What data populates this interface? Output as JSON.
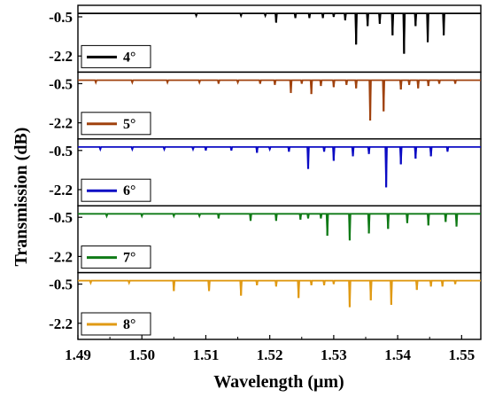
{
  "chart_data": {
    "type": "line",
    "xlabel": "Wavelength (μm)",
    "ylabel": "Transmission (dB)",
    "xlim": [
      1.49,
      1.553
    ],
    "x_ticks": [
      "1.49",
      "1.50",
      "1.51",
      "1.52",
      "1.53",
      "1.54",
      "1.55"
    ],
    "x_tick_values": [
      1.49,
      1.5,
      1.51,
      1.52,
      1.53,
      1.54,
      1.55
    ],
    "y_ticks": [
      "-0.5",
      "-2.2"
    ],
    "y_tick_values": [
      -0.5,
      -2.2
    ],
    "ylim": [
      -2.9,
      0.0
    ],
    "baseline": -0.35,
    "grid": false,
    "legend_position": "bottom-left",
    "series": [
      {
        "name": "4°",
        "color": "#000000",
        "dips": [
          [
            1.5085,
            -0.45
          ],
          [
            1.5155,
            -0.45
          ],
          [
            1.5193,
            -0.45
          ],
          [
            1.521,
            -0.75
          ],
          [
            1.524,
            -0.55
          ],
          [
            1.5262,
            -0.55
          ],
          [
            1.5283,
            -0.55
          ],
          [
            1.53,
            -0.5
          ],
          [
            1.5318,
            -0.65
          ],
          [
            1.5335,
            -1.7
          ],
          [
            1.5353,
            -0.9
          ],
          [
            1.5372,
            -0.8
          ],
          [
            1.5392,
            -1.3
          ],
          [
            1.541,
            -2.1
          ],
          [
            1.5428,
            -0.9
          ],
          [
            1.5447,
            -1.6
          ],
          [
            1.5472,
            -1.3
          ]
        ]
      },
      {
        "name": "5°",
        "color": "#a0420e",
        "dips": [
          [
            1.4928,
            -0.45
          ],
          [
            1.4985,
            -0.45
          ],
          [
            1.504,
            -0.45
          ],
          [
            1.509,
            -0.45
          ],
          [
            1.512,
            -0.5
          ],
          [
            1.515,
            -0.45
          ],
          [
            1.5185,
            -0.5
          ],
          [
            1.5208,
            -0.55
          ],
          [
            1.5233,
            -0.9
          ],
          [
            1.525,
            -0.5
          ],
          [
            1.5265,
            -0.95
          ],
          [
            1.528,
            -0.6
          ],
          [
            1.53,
            -0.65
          ],
          [
            1.532,
            -0.55
          ],
          [
            1.5335,
            -0.7
          ],
          [
            1.5357,
            -2.1
          ],
          [
            1.5378,
            -1.7
          ],
          [
            1.5405,
            -0.75
          ],
          [
            1.5418,
            -0.55
          ],
          [
            1.5432,
            -0.7
          ],
          [
            1.5448,
            -0.6
          ],
          [
            1.5465,
            -0.5
          ],
          [
            1.549,
            -0.5
          ]
        ]
      },
      {
        "name": "6°",
        "color": "#0b0bc4",
        "dips": [
          [
            1.4935,
            -0.45
          ],
          [
            1.4985,
            -0.45
          ],
          [
            1.5035,
            -0.45
          ],
          [
            1.508,
            -0.45
          ],
          [
            1.51,
            -0.5
          ],
          [
            1.514,
            -0.5
          ],
          [
            1.518,
            -0.6
          ],
          [
            1.52,
            -0.45
          ],
          [
            1.523,
            -0.55
          ],
          [
            1.526,
            -1.3
          ],
          [
            1.5285,
            -0.55
          ],
          [
            1.53,
            -0.95
          ],
          [
            1.533,
            -0.75
          ],
          [
            1.5355,
            -0.65
          ],
          [
            1.5382,
            -2.1
          ],
          [
            1.5405,
            -1.1
          ],
          [
            1.5428,
            -0.85
          ],
          [
            1.5452,
            -0.75
          ],
          [
            1.5478,
            -0.55
          ]
        ]
      },
      {
        "name": "7°",
        "color": "#0f7a16",
        "dips": [
          [
            1.4945,
            -0.45
          ],
          [
            1.5,
            -0.45
          ],
          [
            1.505,
            -0.45
          ],
          [
            1.509,
            -0.45
          ],
          [
            1.512,
            -0.55
          ],
          [
            1.517,
            -0.65
          ],
          [
            1.521,
            -0.65
          ],
          [
            1.5248,
            -0.6
          ],
          [
            1.526,
            -0.55
          ],
          [
            1.528,
            -0.55
          ],
          [
            1.529,
            -1.3
          ],
          [
            1.5325,
            -1.5
          ],
          [
            1.5355,
            -1.2
          ],
          [
            1.5385,
            -1.0
          ],
          [
            1.5415,
            -0.75
          ],
          [
            1.5448,
            -0.85
          ],
          [
            1.5475,
            -0.7
          ],
          [
            1.5492,
            -0.9
          ]
        ]
      },
      {
        "name": "8°",
        "color": "#e09a14",
        "dips": [
          [
            1.492,
            -0.45
          ],
          [
            1.498,
            -0.45
          ],
          [
            1.505,
            -0.8
          ],
          [
            1.5105,
            -0.8
          ],
          [
            1.5155,
            -1.0
          ],
          [
            1.518,
            -0.55
          ],
          [
            1.521,
            -0.6
          ],
          [
            1.5245,
            -1.1
          ],
          [
            1.5265,
            -0.55
          ],
          [
            1.5285,
            -0.55
          ],
          [
            1.53,
            -0.5
          ],
          [
            1.5325,
            -1.5
          ],
          [
            1.5358,
            -1.2
          ],
          [
            1.539,
            -1.4
          ],
          [
            1.543,
            -0.75
          ],
          [
            1.5452,
            -0.6
          ],
          [
            1.547,
            -0.6
          ],
          [
            1.549,
            -0.5
          ]
        ]
      }
    ]
  }
}
